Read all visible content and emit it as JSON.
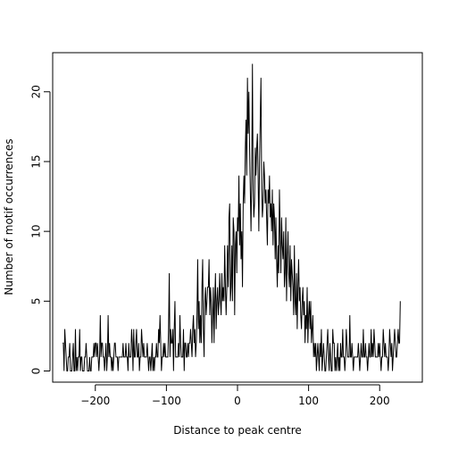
{
  "chart_data": {
    "type": "line",
    "title": "",
    "xlabel": "Distance to peak centre",
    "ylabel": "Number of motif occurrences",
    "xlim": [
      -260,
      260
    ],
    "ylim": [
      -0.8,
      22.8
    ],
    "grid": false,
    "legend": "none",
    "line_color": "#000000",
    "x_ticks": [
      -200,
      -100,
      0,
      100,
      200
    ],
    "x_tick_labels": [
      "−200",
      "−100",
      "0",
      "100",
      "200"
    ],
    "y_ticks": [
      0,
      5,
      10,
      15,
      20
    ],
    "y_tick_labels": [
      "0",
      "5",
      "10",
      "15",
      "20"
    ],
    "x_start": -246,
    "x_step": 1,
    "series": [
      {
        "values": [
          2,
          2,
          0,
          3,
          2,
          1,
          0,
          0,
          1,
          1,
          2,
          0,
          0,
          0,
          1,
          2,
          0,
          0,
          3,
          0,
          1,
          0,
          1,
          1,
          3,
          0,
          1,
          1,
          0,
          0,
          0,
          1,
          1,
          2,
          1,
          0,
          0,
          0,
          1,
          0,
          0,
          1,
          1,
          1,
          2,
          1,
          2,
          2,
          1,
          2,
          1,
          0,
          1,
          4,
          1,
          2,
          2,
          1,
          1,
          0,
          1,
          2,
          0,
          1,
          4,
          1,
          2,
          1,
          1,
          0,
          1,
          0,
          1,
          2,
          2,
          1,
          1,
          1,
          0,
          1,
          1,
          1,
          1,
          1,
          1,
          2,
          1,
          1,
          1,
          2,
          1,
          1,
          0,
          2,
          1,
          1,
          1,
          3,
          2,
          0,
          3,
          1,
          1,
          2,
          3,
          1,
          1,
          2,
          0,
          1,
          1,
          3,
          2,
          1,
          2,
          1,
          1,
          1,
          1,
          2,
          1,
          0,
          1,
          1,
          0,
          1,
          2,
          0,
          1,
          0,
          1,
          1,
          2,
          1,
          1,
          3,
          2,
          4,
          2,
          0,
          1,
          1,
          2,
          1,
          2,
          1,
          1,
          1,
          1,
          3,
          7,
          1,
          3,
          2,
          2,
          3,
          0,
          3,
          5,
          1,
          1,
          1,
          1,
          2,
          1,
          4,
          2,
          1,
          1,
          1,
          3,
          0,
          2,
          2,
          1,
          1,
          2,
          1,
          2,
          2,
          3,
          2,
          1,
          3,
          4,
          2,
          3,
          1,
          2,
          4,
          8,
          3,
          5,
          2,
          4,
          2,
          6,
          8,
          3,
          1,
          5,
          6,
          4,
          5,
          6,
          6,
          8,
          4,
          6,
          5,
          2,
          4,
          6,
          2,
          5,
          7,
          3,
          5,
          6,
          4,
          5,
          7,
          5,
          4,
          7,
          5,
          6,
          5,
          9,
          6,
          4,
          6,
          9,
          6,
          11,
          12,
          5,
          6,
          9,
          5,
          11,
          10,
          4,
          9,
          10,
          7,
          11,
          10,
          14,
          9,
          12,
          8,
          10,
          6,
          12,
          14,
          12,
          16,
          18,
          14,
          21,
          17,
          20,
          16,
          13,
          10,
          14,
          22,
          13,
          11,
          12,
          16,
          14,
          16,
          17,
          14,
          10,
          15,
          18,
          21,
          13,
          11,
          12,
          15,
          14,
          12,
          13,
          11,
          9,
          13,
          12,
          14,
          11,
          12,
          10,
          13,
          9,
          12,
          11,
          8,
          11,
          8,
          6,
          9,
          7,
          13,
          10,
          7,
          11,
          9,
          8,
          10,
          6,
          7,
          11,
          5,
          8,
          10,
          7,
          6,
          9,
          5,
          8,
          7,
          6,
          4,
          9,
          5,
          4,
          7,
          3,
          6,
          8,
          5,
          6,
          4,
          3,
          5,
          6,
          4,
          5,
          2,
          4,
          3,
          6,
          2,
          4,
          5,
          3,
          5,
          2,
          3,
          4,
          1,
          2,
          1,
          2,
          0,
          1,
          2,
          1,
          0,
          2,
          1,
          3,
          0,
          1,
          2,
          1,
          0,
          0,
          1,
          2,
          3,
          1,
          0,
          2,
          1,
          0,
          0,
          3,
          2,
          2,
          0,
          1,
          0,
          1,
          2,
          0,
          1,
          0,
          2,
          1,
          1,
          3,
          1,
          1,
          0,
          1,
          3,
          2,
          1,
          1,
          1,
          4,
          1,
          1,
          2,
          1,
          0,
          1,
          1,
          1,
          1,
          1,
          1,
          2,
          1,
          0,
          1,
          2,
          1,
          1,
          3,
          1,
          1,
          2,
          1,
          1,
          0,
          1,
          2,
          1,
          1,
          3,
          1,
          2,
          1,
          3,
          2,
          1,
          1,
          1,
          1,
          2,
          1,
          2,
          1,
          0,
          1,
          1,
          3,
          2,
          1,
          2,
          1,
          1,
          1,
          0,
          1,
          3,
          2,
          1,
          2,
          0,
          1,
          2,
          3,
          2,
          1,
          1,
          2,
          3,
          2,
          2,
          5
        ]
      }
    ]
  }
}
